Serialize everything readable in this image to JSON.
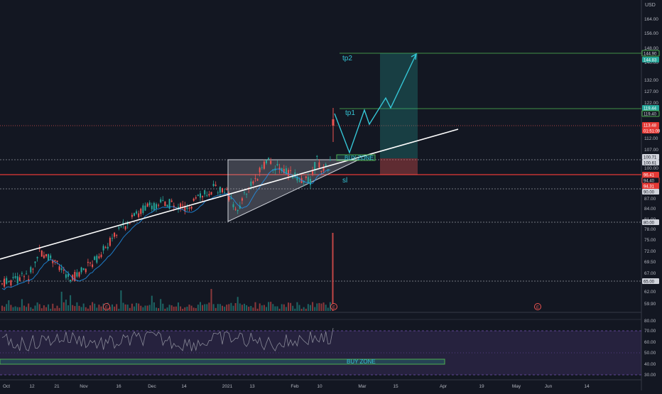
{
  "currency": "USD",
  "price_axis": {
    "ticks": [
      "164.00",
      "156.00",
      "148.00",
      "140.00",
      "132.00",
      "127.00",
      "122.00",
      "112.00",
      "107.00",
      "103.00",
      "100.00",
      "90.00",
      "87.00",
      "84.00",
      "81.00",
      "78.00",
      "75.00",
      "72.00",
      "69.50",
      "67.00",
      "62.00",
      "59.90"
    ],
    "badges": [
      {
        "text": "144.90",
        "bg": "#131722",
        "fg": "#d1d4dc",
        "border": "#4caf50"
      },
      {
        "text": "144.83",
        "bg": "#26a69a",
        "fg": "#ffffff"
      },
      {
        "text": "119.44",
        "bg": "#26a69a",
        "fg": "#ffffff"
      },
      {
        "text": "119.40",
        "bg": "#131722",
        "fg": "#d1d4dc",
        "border": "#4caf50"
      },
      {
        "text": "113.48",
        "bg": "#e53935",
        "fg": "#ffffff"
      },
      {
        "text": "01:51:09",
        "bg": "#e53935",
        "fg": "#ffffff"
      },
      {
        "text": "100.71",
        "bg": "#d1d4dc",
        "fg": "#131722"
      },
      {
        "text": "100.61",
        "bg": "#d1d4dc",
        "fg": "#131722"
      },
      {
        "text": "96.41",
        "bg": "#e53935",
        "fg": "#ffffff"
      },
      {
        "text": "94.40",
        "bg": "#131722",
        "fg": "#d1d4dc",
        "border": "#e53935"
      },
      {
        "text": "94.31",
        "bg": "#e53935",
        "fg": "#ffffff"
      },
      {
        "text": "90.00",
        "bg": "#d1d4dc",
        "fg": "#131722"
      },
      {
        "text": "80.00",
        "bg": "#d1d4dc",
        "fg": "#131722"
      },
      {
        "text": "65.00",
        "bg": "#d1d4dc",
        "fg": "#131722"
      }
    ]
  },
  "rsi_axis": {
    "ticks": [
      "80.00",
      "70.00",
      "60.00",
      "50.00",
      "40.00",
      "30.00"
    ]
  },
  "time_axis": {
    "ticks": [
      "Oct",
      "12",
      "21",
      "Nov",
      "16",
      "Dec",
      "14",
      "2021",
      "13",
      "Feb",
      "10",
      "Mar",
      "15",
      "Apr",
      "19",
      "May",
      "Jun",
      "14"
    ]
  },
  "annotations": {
    "tp2": "tp2",
    "tp1": "tp1",
    "buy_zone": "BUY ZONE",
    "sl": "sl",
    "earnings": "E",
    "rsi_buy_zone": "BUY ZONE"
  },
  "colors": {
    "up": "#26a69a",
    "down": "#ef5350",
    "rsi": "#7e57c2",
    "target": "#26a69a",
    "stop": "#ef5350",
    "cyan": "#35c6d6"
  }
}
